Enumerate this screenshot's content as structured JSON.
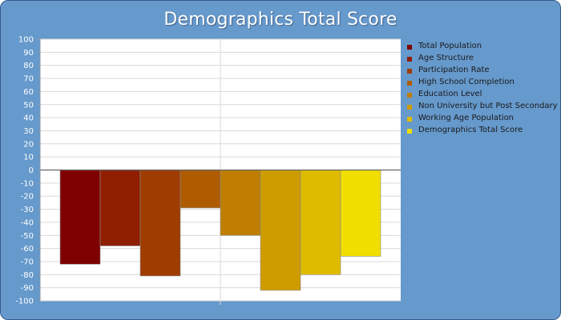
{
  "chart_data": {
    "type": "bar",
    "title": "Demographics Total Score",
    "ylim": [
      -100,
      100
    ],
    "ytick_step": 10,
    "grid": true,
    "legend_position": "right",
    "series": [
      {
        "name": "Total Population",
        "value": -72,
        "color": "#7f0000"
      },
      {
        "name": "Age Structure",
        "value": -58,
        "color": "#8f1f00"
      },
      {
        "name": "Participation Rate",
        "value": -81,
        "color": "#9f3c00"
      },
      {
        "name": "High School Completion",
        "value": -29,
        "color": "#af5c00"
      },
      {
        "name": "Education Level",
        "value": -50,
        "color": "#bf7e00"
      },
      {
        "name": "Non University but Post Secondary",
        "value": -92,
        "color": "#cf9c00"
      },
      {
        "name": "Working Age Population",
        "value": -80,
        "color": "#dfbb00"
      },
      {
        "name": "Demographics Total Score",
        "value": -66,
        "color": "#efde00"
      }
    ]
  }
}
